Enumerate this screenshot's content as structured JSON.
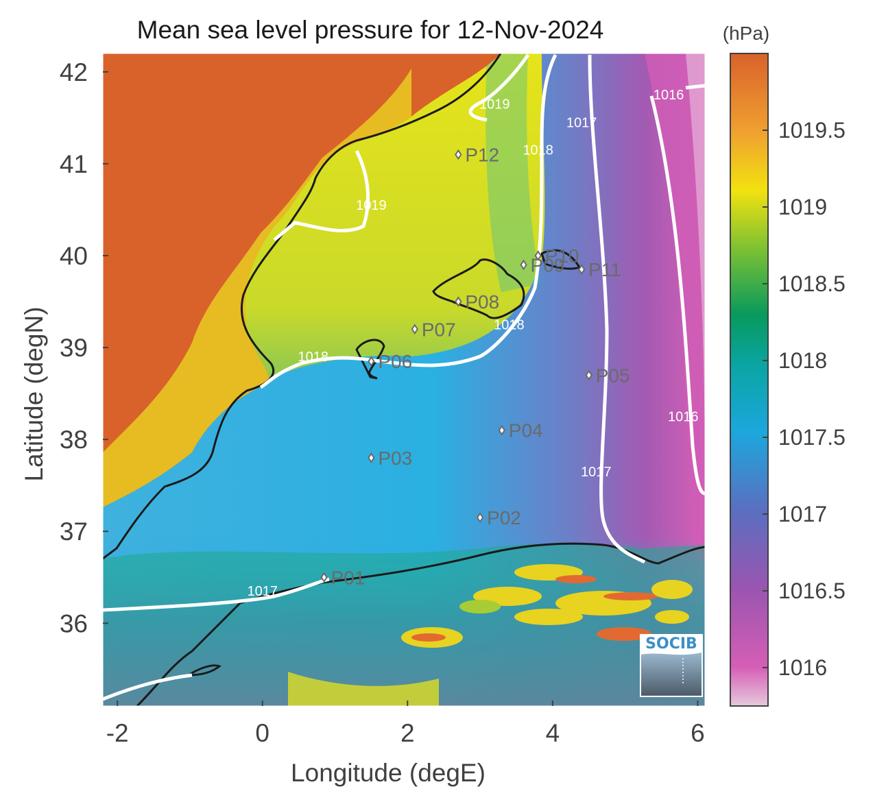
{
  "title": "Mean sea level pressure for 12-Nov-2024",
  "xlabel": "Longitude (degE)",
  "ylabel": "Latitude (degN)",
  "colorbar_unit": "(hPa)",
  "logo": "SOCIB",
  "x_ticks": [
    "-2",
    "0",
    "2",
    "4",
    "6"
  ],
  "y_ticks": [
    "42",
    "41",
    "40",
    "39",
    "38",
    "37",
    "36"
  ],
  "colorbar_ticks": [
    "1019.5",
    "1019",
    "1018.5",
    "1018",
    "1017.5",
    "1017",
    "1016.5",
    "1016"
  ],
  "colors": {
    "land": "#d9622b",
    "coast": "#1a1a1a",
    "contour": "#ffffff",
    "station": "#6a6a6a"
  },
  "chart_data": {
    "type": "heatmap",
    "title": "Mean sea level pressure for 12-Nov-2024",
    "xlabel": "Longitude (degE)",
    "ylabel": "Latitude (degN)",
    "xlim": [
      -2.2,
      6.1
    ],
    "ylim": [
      35.1,
      42.2
    ],
    "colorbar": {
      "label": "(hPa)",
      "range": [
        1015.75,
        1020.0
      ],
      "ticks": [
        1016,
        1016.5,
        1017,
        1017.5,
        1018,
        1018.5,
        1019,
        1019.5
      ]
    },
    "contour_labels": [
      {
        "text": "1016",
        "lon": 5.6,
        "lat": 41.7
      },
      {
        "text": "1016",
        "lon": 5.8,
        "lat": 38.2
      },
      {
        "text": "1017",
        "lon": 4.4,
        "lat": 41.4
      },
      {
        "text": "1017",
        "lon": 4.6,
        "lat": 37.6
      },
      {
        "text": "1017",
        "lon": 0.0,
        "lat": 36.3
      },
      {
        "text": "1018",
        "lon": 3.8,
        "lat": 41.1
      },
      {
        "text": "1018",
        "lon": 3.4,
        "lat": 39.2
      },
      {
        "text": "1018",
        "lon": 0.7,
        "lat": 38.85
      },
      {
        "text": "1019",
        "lon": 3.2,
        "lat": 41.6
      },
      {
        "text": "1019",
        "lon": 1.5,
        "lat": 40.5
      }
    ],
    "stations": [
      {
        "name": "P01",
        "lon": 0.85,
        "lat": 36.5
      },
      {
        "name": "P02",
        "lon": 3.0,
        "lat": 37.15
      },
      {
        "name": "P03",
        "lon": 1.5,
        "lat": 37.8
      },
      {
        "name": "P04",
        "lon": 3.3,
        "lat": 38.1
      },
      {
        "name": "P05",
        "lon": 4.5,
        "lat": 38.7
      },
      {
        "name": "P06",
        "lon": 1.5,
        "lat": 38.85
      },
      {
        "name": "P07",
        "lon": 2.1,
        "lat": 39.2
      },
      {
        "name": "P08",
        "lon": 2.7,
        "lat": 39.5
      },
      {
        "name": "P09",
        "lon": 3.6,
        "lat": 39.9
      },
      {
        "name": "P10",
        "lon": 3.8,
        "lat": 40.0
      },
      {
        "name": "P11",
        "lon": 4.4,
        "lat": 39.85
      },
      {
        "name": "P12",
        "lon": 2.7,
        "lat": 41.1
      }
    ]
  }
}
